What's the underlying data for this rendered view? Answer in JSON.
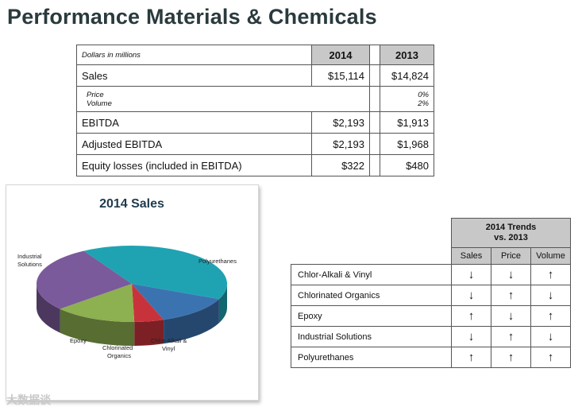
{
  "title": "Performance Materials & Chemicals",
  "financials": {
    "unit_label": "Dollars in millions",
    "years": [
      "2014",
      "2013"
    ],
    "rows": [
      {
        "label": "Sales",
        "v2014": "$15,114",
        "v2013": "$14,824"
      },
      {
        "sub_labels": [
          "Price",
          "Volume"
        ],
        "v2013": [
          "0%",
          "2%"
        ]
      },
      {
        "label": "EBITDA",
        "v2014": "$2,193",
        "v2013": "$1,913"
      },
      {
        "label": "Adjusted EBITDA",
        "v2014": "$2,193",
        "v2013": "$1,968"
      },
      {
        "label": "Equity losses (included in EBITDA)",
        "v2014": "$322",
        "v2013": "$480"
      }
    ]
  },
  "chart_data": {
    "type": "pie",
    "title": "2014 Sales",
    "categories": [
      "Polyurethanes",
      "Chlor-Alkali & Vinyl",
      "Chlorinated Organics",
      "Epoxy",
      "Industrial Solutions"
    ],
    "values": [
      40,
      13,
      5,
      14,
      28
    ],
    "colors": [
      "#1fa3b3",
      "#3b73b1",
      "#c8333b",
      "#8db050",
      "#7a5a9a"
    ],
    "labels": {
      "polyurethanes": "Polyurethanes",
      "chlor_line1": "Chlor-Alkali &",
      "chlor_line2": "Vinyl",
      "chlorinated_line1": "Chlorinated",
      "chlorinated_line2": "Organics",
      "epoxy": "Epoxy",
      "industrial_line1": "Industrial",
      "industrial_line2": "Solutions"
    }
  },
  "trends": {
    "header_line1": "2014 Trends",
    "header_line2": "vs. 2013",
    "columns": [
      "Sales",
      "Price",
      "Volume"
    ],
    "rows": [
      {
        "name": "Chlor-Alkali & Vinyl",
        "sales": "↓",
        "price": "↓",
        "volume": "↑"
      },
      {
        "name": "Chlorinated Organics",
        "sales": "↓",
        "price": "↑",
        "volume": "↓"
      },
      {
        "name": "Epoxy",
        "sales": "↑",
        "price": "↓",
        "volume": "↑"
      },
      {
        "name": "Industrial Solutions",
        "sales": "↓",
        "price": "↑",
        "volume": "↓"
      },
      {
        "name": "Polyurethanes",
        "sales": "↑",
        "price": "↑",
        "volume": "↑"
      }
    ]
  },
  "watermark": "大数据谈"
}
